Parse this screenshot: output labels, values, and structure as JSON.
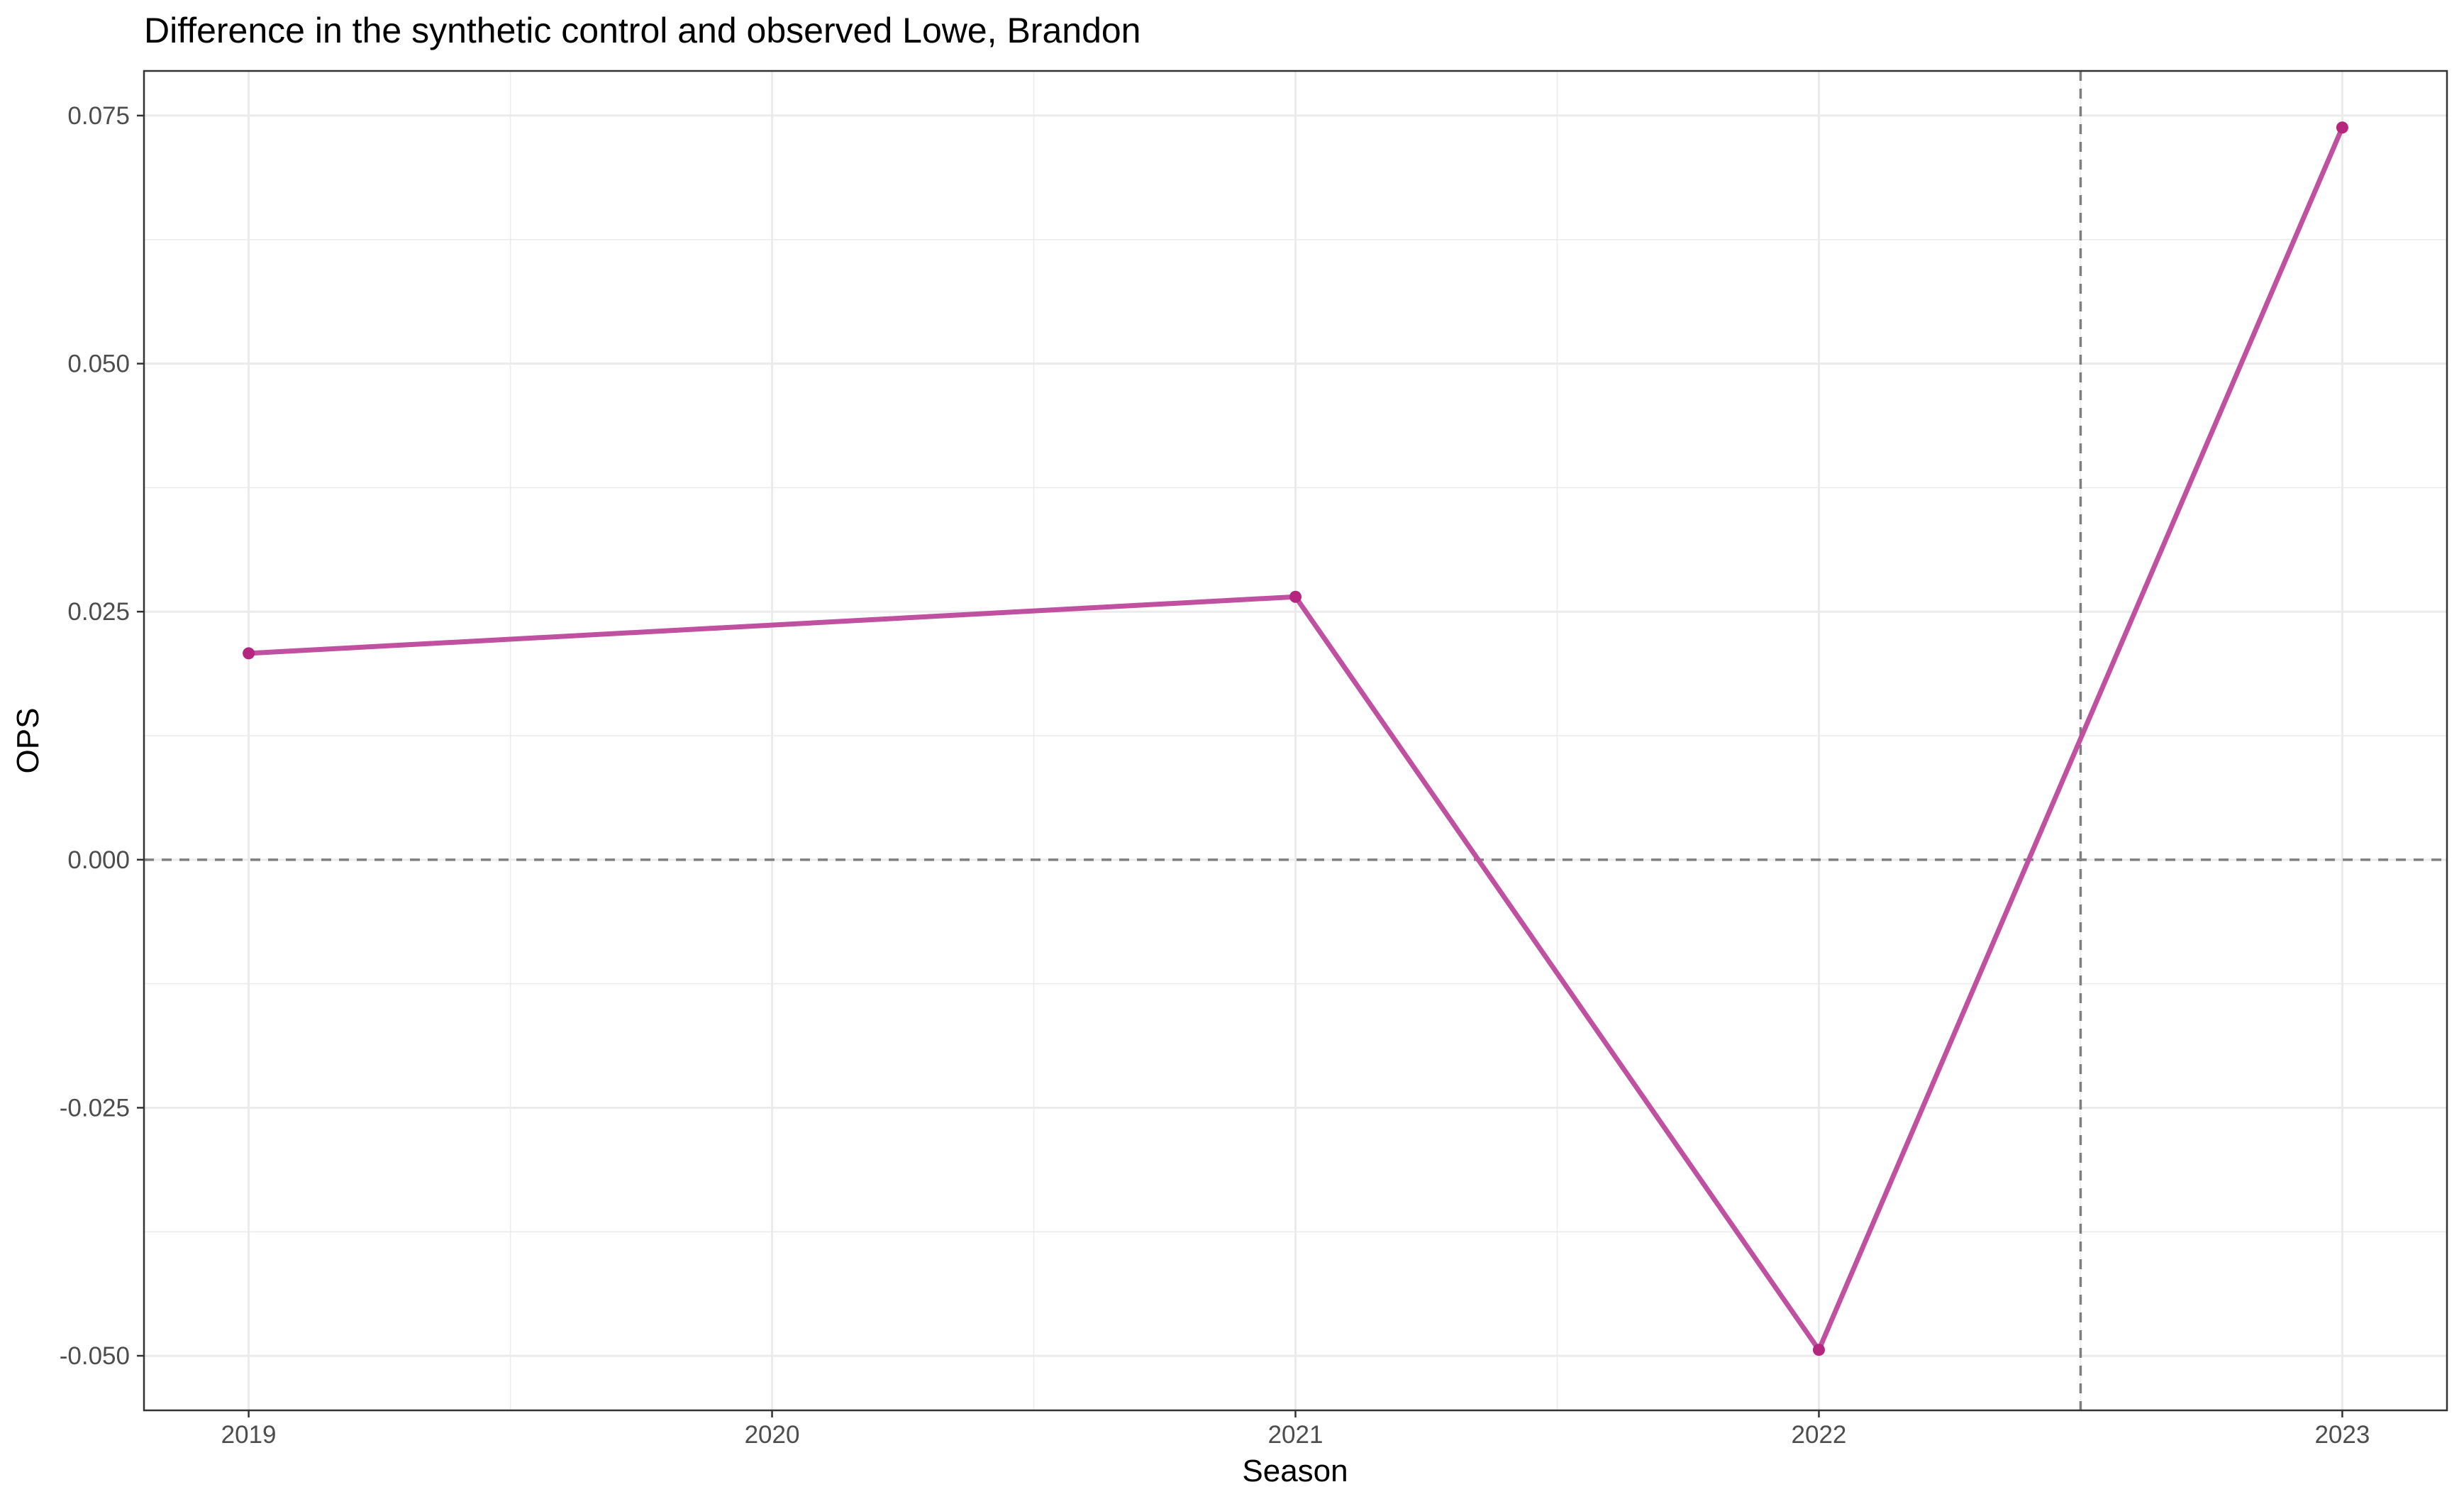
{
  "chart_data": {
    "type": "line",
    "title": "Difference in the synthetic control and observed Lowe, Brandon",
    "xlabel": "Season",
    "ylabel": "OPS",
    "x": [
      2019,
      2021,
      2022,
      2023
    ],
    "series": [
      {
        "values": [
          0.0208,
          0.0265,
          -0.0494,
          0.0738
        ],
        "color": "#c050a0"
      }
    ],
    "xticks": [
      2019,
      2020,
      2021,
      2022,
      2023
    ],
    "xtick_labels": [
      "2019",
      "2020",
      "2021",
      "2022",
      "2023"
    ],
    "yticks": [
      -0.05,
      -0.025,
      0,
      0.025,
      0.05,
      0.075
    ],
    "ytick_labels": [
      "-0.050",
      "-0.025",
      "0.000",
      "0.025",
      "0.050",
      "0.075"
    ],
    "xlim": [
      2018.8,
      2023.2
    ],
    "ylim": [
      -0.0555,
      0.0795
    ],
    "reference_lines": {
      "horizontal_y": 0,
      "vertical_x": 2022.5
    },
    "grid": true,
    "legend": "none",
    "colors": {
      "line": "#c050a0",
      "point": "#b5267f",
      "reference": "#7f7f7f",
      "grid": "#ebebeb",
      "panel_border": "#333333"
    }
  }
}
